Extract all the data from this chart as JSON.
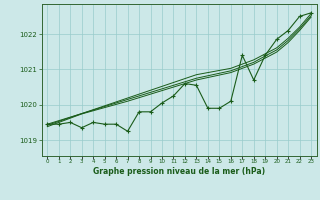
{
  "background_color": "#cce8e8",
  "plot_bg_color": "#cce8e8",
  "grid_color": "#99cccc",
  "line_color": "#1a5c1a",
  "title": "Graphe pression niveau de la mer (hPa)",
  "yticks": [
    1019,
    1020,
    1021,
    1022
  ],
  "ylim": [
    1018.55,
    1022.85
  ],
  "xlim": [
    -0.5,
    23.5
  ],
  "pressure_data": [
    1019.45,
    1019.45,
    1019.5,
    1019.35,
    1019.5,
    1019.45,
    1019.45,
    1019.25,
    1019.8,
    1019.8,
    1020.05,
    1020.25,
    1020.6,
    1020.55,
    1019.9,
    1019.9,
    1020.1,
    1021.4,
    1020.7,
    1021.4,
    1021.85,
    1022.1,
    1022.5,
    1022.6
  ],
  "trend_line1": [
    1019.45,
    1019.55,
    1019.65,
    1019.75,
    1019.85,
    1019.95,
    1020.05,
    1020.15,
    1020.25,
    1020.35,
    1020.45,
    1020.55,
    1020.65,
    1020.75,
    1020.82,
    1020.89,
    1020.96,
    1021.08,
    1021.2,
    1021.38,
    1021.55,
    1021.82,
    1022.15,
    1022.52
  ],
  "trend_line2": [
    1019.42,
    1019.53,
    1019.64,
    1019.75,
    1019.86,
    1019.97,
    1020.08,
    1020.19,
    1020.3,
    1020.41,
    1020.52,
    1020.63,
    1020.74,
    1020.85,
    1020.91,
    1020.97,
    1021.03,
    1021.15,
    1021.27,
    1021.44,
    1021.61,
    1021.88,
    1022.2,
    1022.58
  ],
  "trend_line3": [
    1019.38,
    1019.5,
    1019.62,
    1019.74,
    1019.83,
    1019.92,
    1020.01,
    1020.1,
    1020.2,
    1020.3,
    1020.4,
    1020.5,
    1020.6,
    1020.7,
    1020.77,
    1020.84,
    1020.91,
    1021.03,
    1021.15,
    1021.32,
    1021.49,
    1021.76,
    1022.1,
    1022.48
  ]
}
